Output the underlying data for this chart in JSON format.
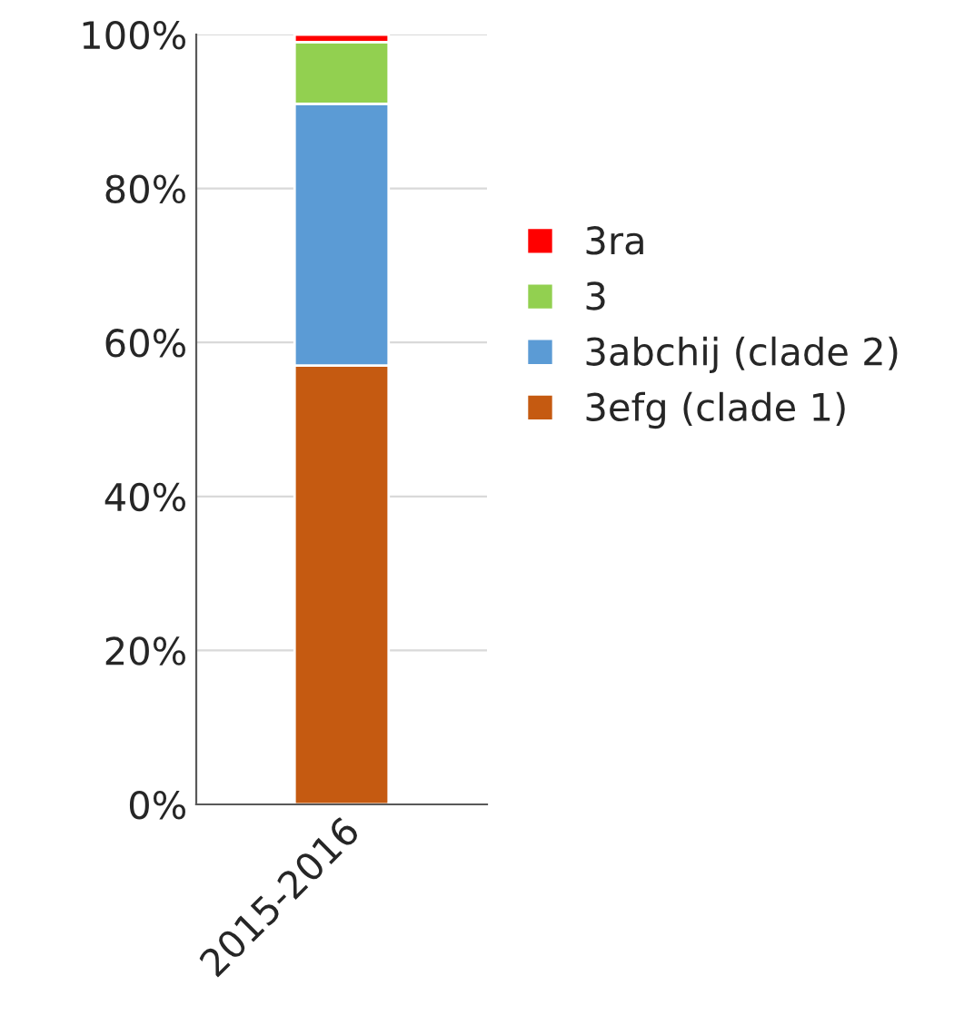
{
  "chart_data": {
    "type": "bar",
    "stacked": true,
    "categories": [
      "2015-2016"
    ],
    "series": [
      {
        "name": "3efg (clade 1)",
        "color": "#c55a11",
        "values": [
          57
        ]
      },
      {
        "name": "3abchij (clade 2)",
        "color": "#5b9bd5",
        "values": [
          34
        ]
      },
      {
        "name": "3",
        "color": "#92d050",
        "values": [
          8
        ]
      },
      {
        "name": "3ra",
        "color": "#ff0000",
        "values": [
          1
        ]
      }
    ],
    "ylim": [
      0,
      100
    ],
    "yticks": [
      {
        "value": 0,
        "label": "0%"
      },
      {
        "value": 20,
        "label": "20%"
      },
      {
        "value": 40,
        "label": "40%"
      },
      {
        "value": 60,
        "label": "60%"
      },
      {
        "value": 80,
        "label": "80%"
      },
      {
        "value": 100,
        "label": "100%"
      }
    ],
    "grid": "y",
    "legend": "right"
  }
}
